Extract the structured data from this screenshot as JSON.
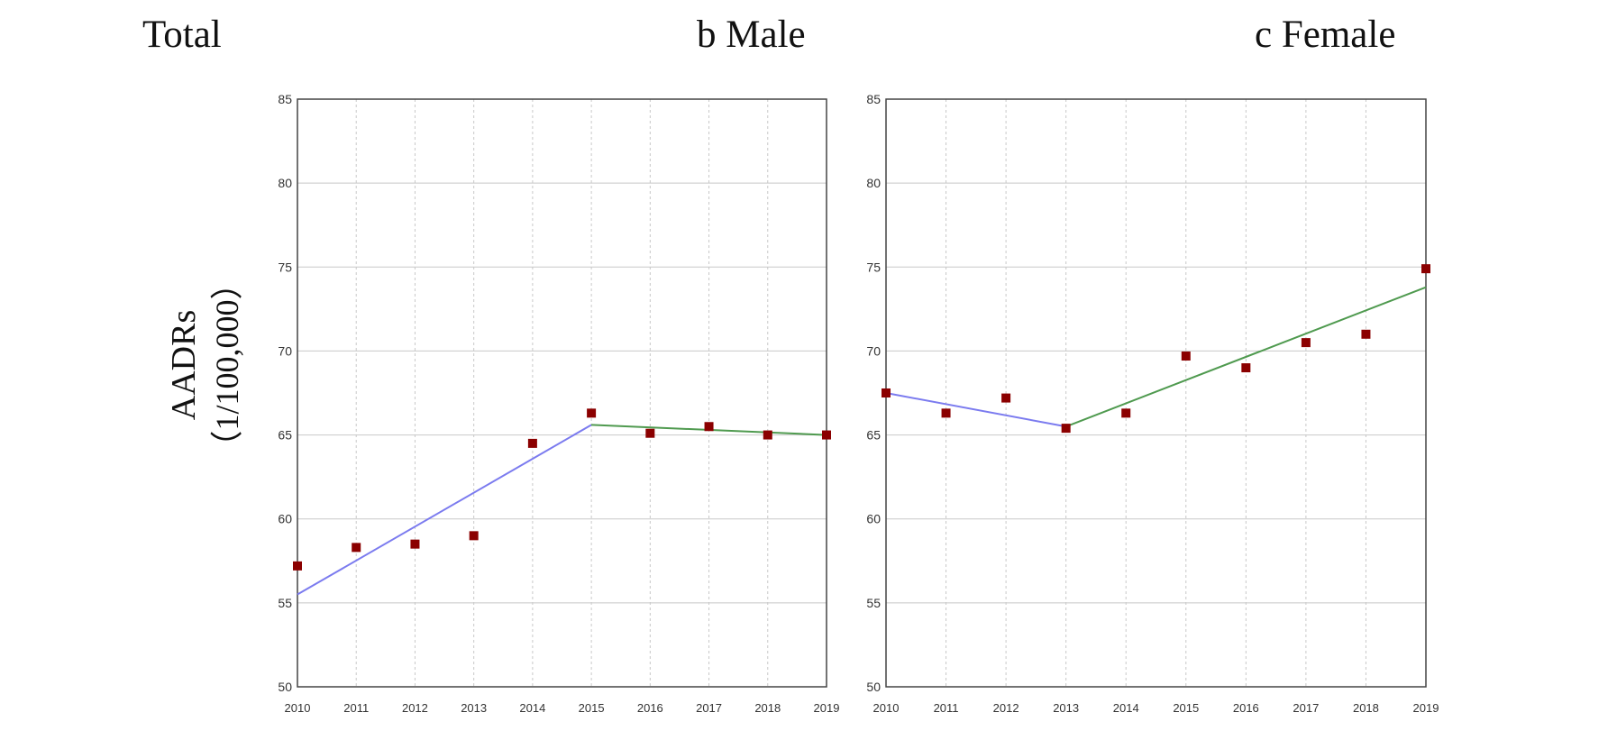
{
  "headings": {
    "total": "Total",
    "male": "b Male",
    "female": "c Female"
  },
  "ylabel": {
    "line1": "AADRs",
    "line2": "（1/100,000）"
  },
  "colors": {
    "point": "#8b0000",
    "segment1": "#7b7bef",
    "segment2": "#4f9a4f",
    "grid": "#c8c8c8",
    "axis": "#444444"
  },
  "chart_data": [
    {
      "type": "scatter",
      "panel": "b Male",
      "x": [
        2010,
        2011,
        2012,
        2013,
        2014,
        2015,
        2016,
        2017,
        2018,
        2019
      ],
      "values": [
        57.2,
        58.3,
        58.5,
        59.0,
        64.5,
        66.3,
        65.1,
        65.5,
        65.0,
        65.0
      ],
      "xlim": [
        2010,
        2019
      ],
      "ylim": [
        50,
        85
      ],
      "xticks": [
        "2010",
        "2011",
        "2012",
        "2013",
        "2014",
        "2015",
        "2016",
        "2017",
        "2018",
        "2019"
      ],
      "yticks": [
        "50",
        "55",
        "60",
        "65",
        "70",
        "75",
        "80",
        "85"
      ],
      "grid": true,
      "trend_segments": [
        {
          "x": [
            2010,
            2015
          ],
          "y": [
            55.5,
            65.6
          ],
          "color": "#7b7bef"
        },
        {
          "x": [
            2015,
            2019
          ],
          "y": [
            65.6,
            65.0
          ],
          "color": "#4f9a4f"
        }
      ]
    },
    {
      "type": "scatter",
      "panel": "c Female",
      "x": [
        2010,
        2011,
        2012,
        2013,
        2014,
        2015,
        2016,
        2017,
        2018,
        2019
      ],
      "values": [
        67.5,
        66.3,
        67.2,
        65.4,
        66.3,
        69.7,
        69.0,
        70.5,
        71.0,
        74.9
      ],
      "xlim": [
        2010,
        2019
      ],
      "ylim": [
        50,
        85
      ],
      "xticks": [
        "2010",
        "2011",
        "2012",
        "2013",
        "2014",
        "2015",
        "2016",
        "2017",
        "2018",
        "2019"
      ],
      "yticks": [
        "50",
        "55",
        "60",
        "65",
        "70",
        "75",
        "80",
        "85"
      ],
      "grid": true,
      "trend_segments": [
        {
          "x": [
            2010,
            2013
          ],
          "y": [
            67.5,
            65.5
          ],
          "color": "#7b7bef"
        },
        {
          "x": [
            2013,
            2019
          ],
          "y": [
            65.5,
            73.8
          ],
          "color": "#4f9a4f"
        }
      ]
    }
  ]
}
